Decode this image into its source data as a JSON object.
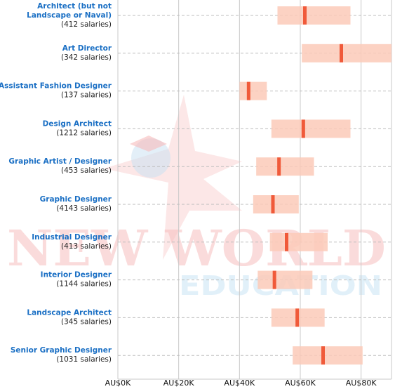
{
  "watermark": {
    "line1": "NEW WORLD",
    "line2": "EDUCATION",
    "color_main": "#f4a9a9",
    "color_sub": "#cfe6f6",
    "star_color": "#f6b8b8",
    "figure_color": "#bcd9ef"
  },
  "colors": {
    "band": "#fccab9",
    "median": "#f05a3a",
    "grid": "#c8c8c8",
    "dashed": "#bdbdbd",
    "title_text": "#1a6fc4"
  },
  "chart_data": {
    "type": "range",
    "xlim": [
      0,
      90000
    ],
    "x_ticks": [
      0,
      20000,
      40000,
      60000,
      80000
    ],
    "x_tick_labels": [
      "AU$0K",
      "AU$20K",
      "AU$40K",
      "AU$60K",
      "AU$80K"
    ],
    "grid": true,
    "rows": [
      {
        "title": [
          "Architect (but not",
          "Landscape or Naval)"
        ],
        "count": "(412 salaries)",
        "low": 52500,
        "high": 76500,
        "median": 61500
      },
      {
        "title": [
          "Art Director"
        ],
        "count": "(342 salaries)",
        "low": 60500,
        "high": 91000,
        "median": 73500
      },
      {
        "title": [
          "Assistant Fashion Designer"
        ],
        "count": "(137 salaries)",
        "low": 40000,
        "high": 49000,
        "median": 43000
      },
      {
        "title": [
          "Design Architect"
        ],
        "count": "(1212 salaries)",
        "low": 50500,
        "high": 76500,
        "median": 61000
      },
      {
        "title": [
          "Graphic Artist / Designer"
        ],
        "count": "(453 salaries)",
        "low": 45500,
        "high": 64500,
        "median": 53000
      },
      {
        "title": [
          "Graphic Designer"
        ],
        "count": "(4143 salaries)",
        "low": 44500,
        "high": 59500,
        "median": 51000
      },
      {
        "title": [
          "Industrial Designer"
        ],
        "count": "(413 salaries)",
        "low": 50000,
        "high": 69000,
        "median": 55500
      },
      {
        "title": [
          "Interior Designer"
        ],
        "count": "(1144 salaries)",
        "low": 46000,
        "high": 64000,
        "median": 51500
      },
      {
        "title": [
          "Landscape Architect"
        ],
        "count": "(345 salaries)",
        "low": 50500,
        "high": 68000,
        "median": 59000
      },
      {
        "title": [
          "Senior Graphic Designer"
        ],
        "count": "(1031 salaries)",
        "low": 57500,
        "high": 80500,
        "median": 67500
      }
    ]
  }
}
